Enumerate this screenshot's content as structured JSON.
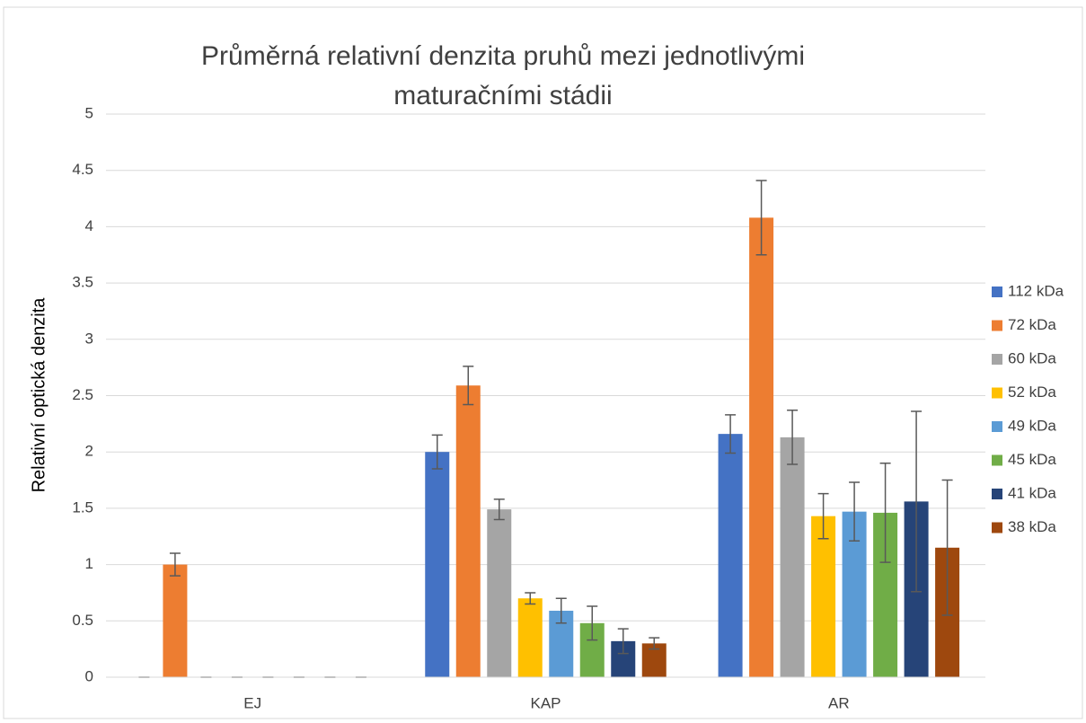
{
  "chart_data": {
    "type": "bar",
    "title": [
      "Průměrná relativní denzita pruhů mezi jednotlivými",
      "maturačními stádii"
    ],
    "ylabel": "Relativní optická denzita",
    "categories": [
      "EJ",
      "KAP",
      "AR"
    ],
    "series": [
      {
        "name": "112 kDa",
        "color": "#4472c4",
        "values": [
          0,
          2.0,
          2.16
        ],
        "errors": [
          0,
          0.15,
          0.17
        ]
      },
      {
        "name": "72 kDa",
        "color": "#ed7d31",
        "values": [
          1.0,
          2.59,
          4.08
        ],
        "errors": [
          0.1,
          0.17,
          0.33
        ]
      },
      {
        "name": "60 kDa",
        "color": "#a5a5a5",
        "values": [
          0,
          1.49,
          2.13
        ],
        "errors": [
          0,
          0.09,
          0.24
        ]
      },
      {
        "name": "52 kDa",
        "color": "#ffc000",
        "values": [
          0,
          0.7,
          1.43
        ],
        "errors": [
          0,
          0.05,
          0.2
        ]
      },
      {
        "name": "49 kDa",
        "color": "#5b9bd5",
        "values": [
          0,
          0.59,
          1.47
        ],
        "errors": [
          0,
          0.11,
          0.26
        ]
      },
      {
        "name": "45 kDa",
        "color": "#70ad47",
        "values": [
          0,
          0.48,
          1.46
        ],
        "errors": [
          0,
          0.15,
          0.44
        ]
      },
      {
        "name": "41 kDa",
        "color": "#264478",
        "values": [
          0,
          0.32,
          1.56
        ],
        "errors": [
          0,
          0.11,
          0.8
        ]
      },
      {
        "name": "38 kDa",
        "color": "#9e480e",
        "values": [
          0,
          0.3,
          1.15
        ],
        "errors": [
          0,
          0.05,
          0.6
        ]
      }
    ],
    "ylim": [
      0,
      5
    ],
    "yticks": [
      0,
      0.5,
      1,
      1.5,
      2,
      2.5,
      3,
      3.5,
      4,
      4.5,
      5
    ],
    "grid": true,
    "legend": "right"
  }
}
